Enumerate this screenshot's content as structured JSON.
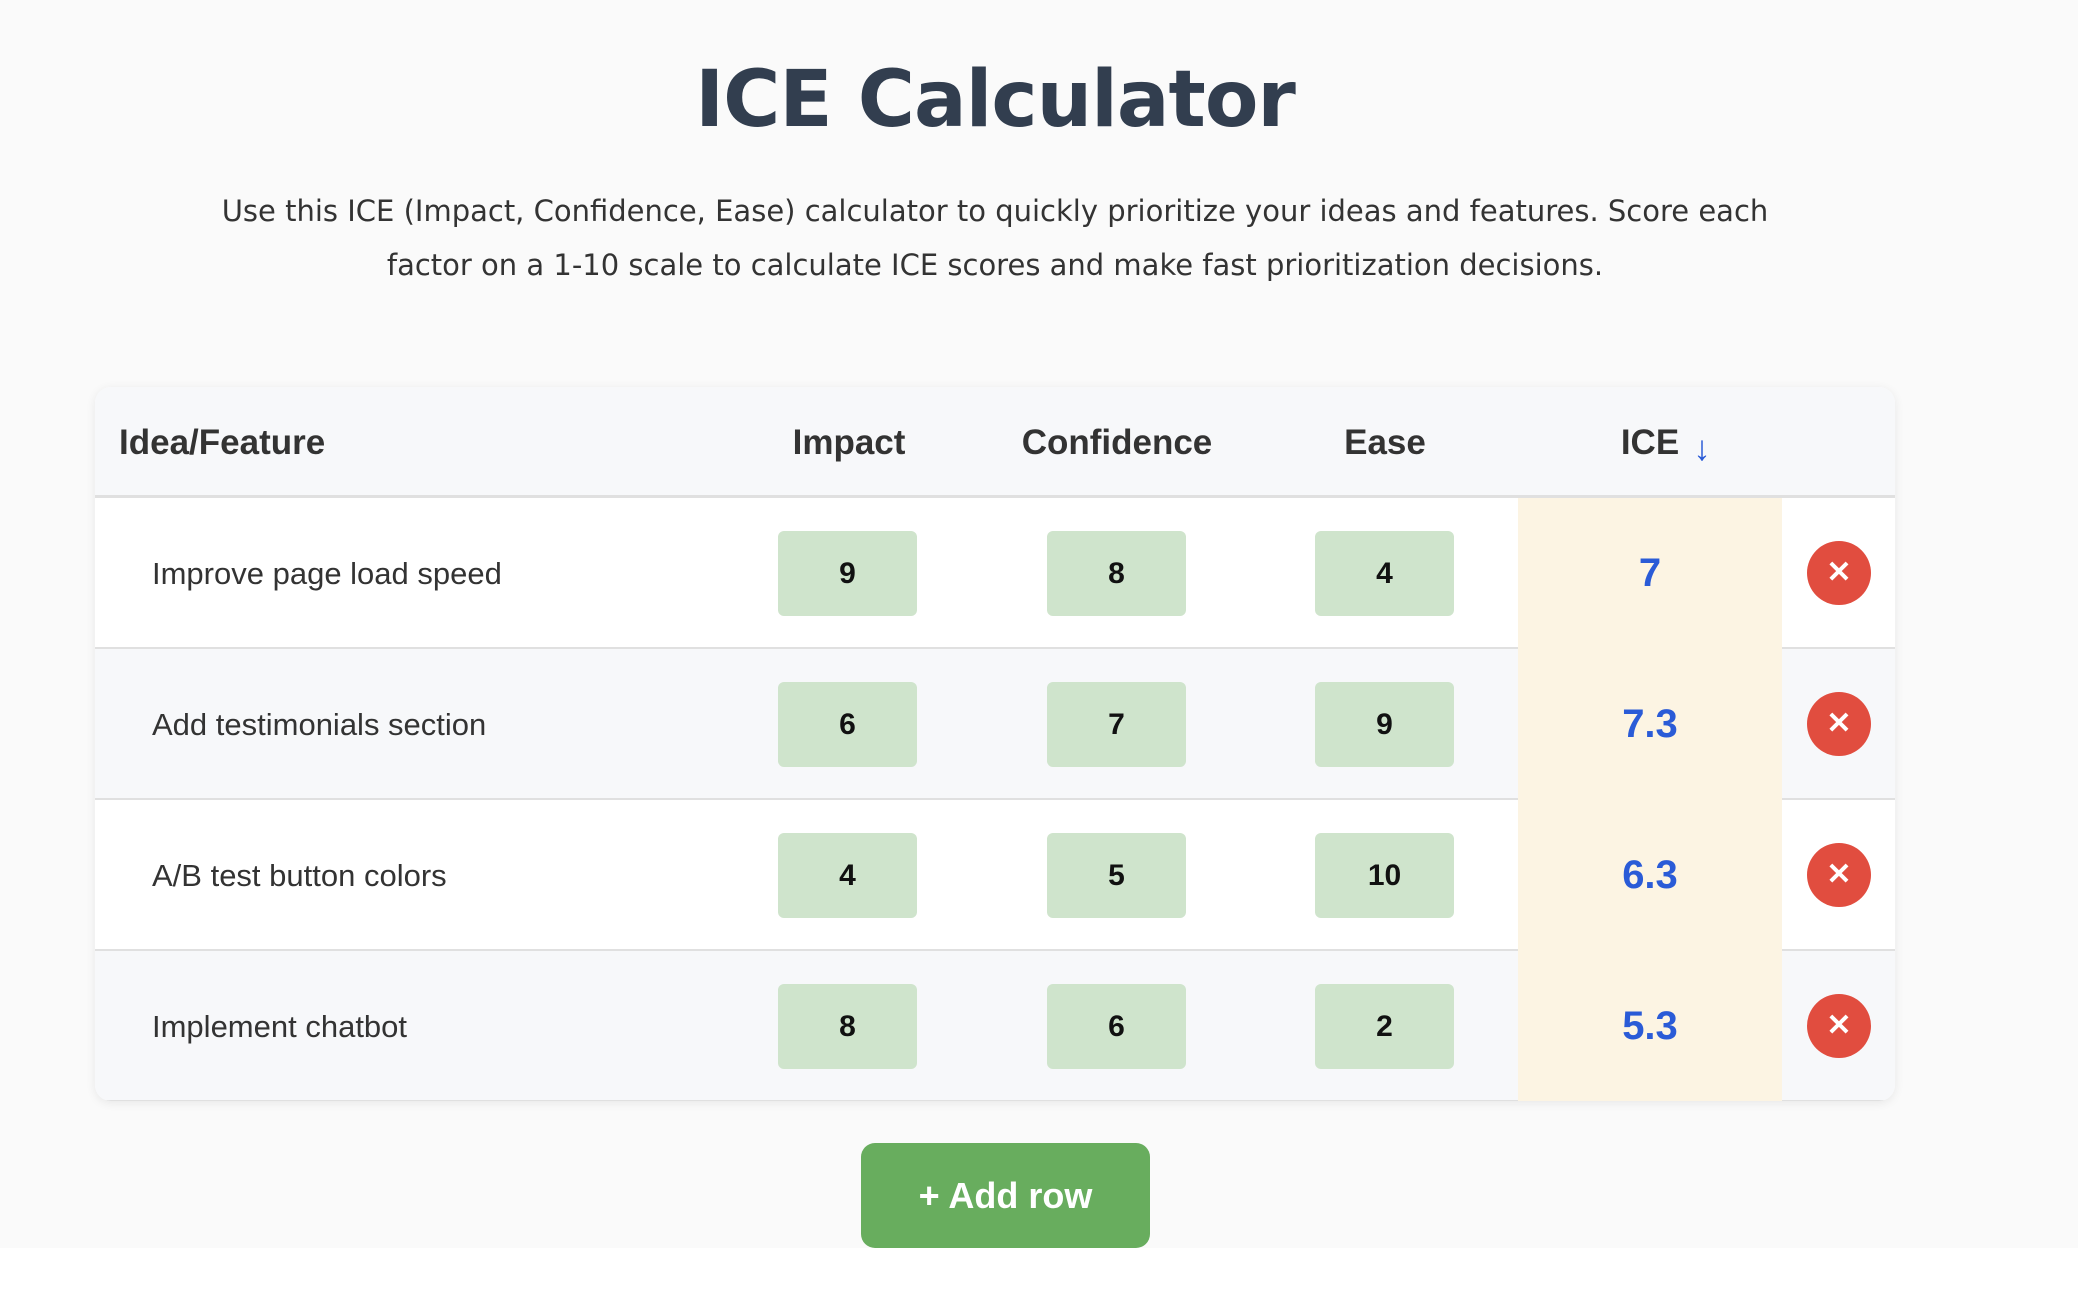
{
  "title": "ICE Calculator",
  "description": "Use this ICE (Impact, Confidence, Ease) calculator to quickly prioritize your ideas and features. Score each factor on a 1-10 scale to calculate ICE scores and make fast prioritization decisions.",
  "table": {
    "headers": {
      "idea": "Idea/Feature",
      "impact": "Impact",
      "confidence": "Confidence",
      "ease": "Ease",
      "ice": "ICE",
      "sort_indicator": "↓"
    },
    "rows": [
      {
        "idea": "Improve page load speed",
        "impact": "9",
        "confidence": "8",
        "ease": "4",
        "ice": "7"
      },
      {
        "idea": "Add testimonials section",
        "impact": "6",
        "confidence": "7",
        "ease": "9",
        "ice": "7.3"
      },
      {
        "idea": "A/B test button colors",
        "impact": "4",
        "confidence": "5",
        "ease": "10",
        "ice": "6.3"
      },
      {
        "idea": "Implement chatbot",
        "impact": "8",
        "confidence": "6",
        "ease": "2",
        "ice": "5.3"
      }
    ],
    "delete_icon": "✕"
  },
  "add_row_label": "+ Add row",
  "colors": {
    "accent_green": "#68ad5e",
    "ice_blue": "#2a5bd7",
    "delete_red": "#e14d3f",
    "score_bg": "#cfe4cc"
  }
}
